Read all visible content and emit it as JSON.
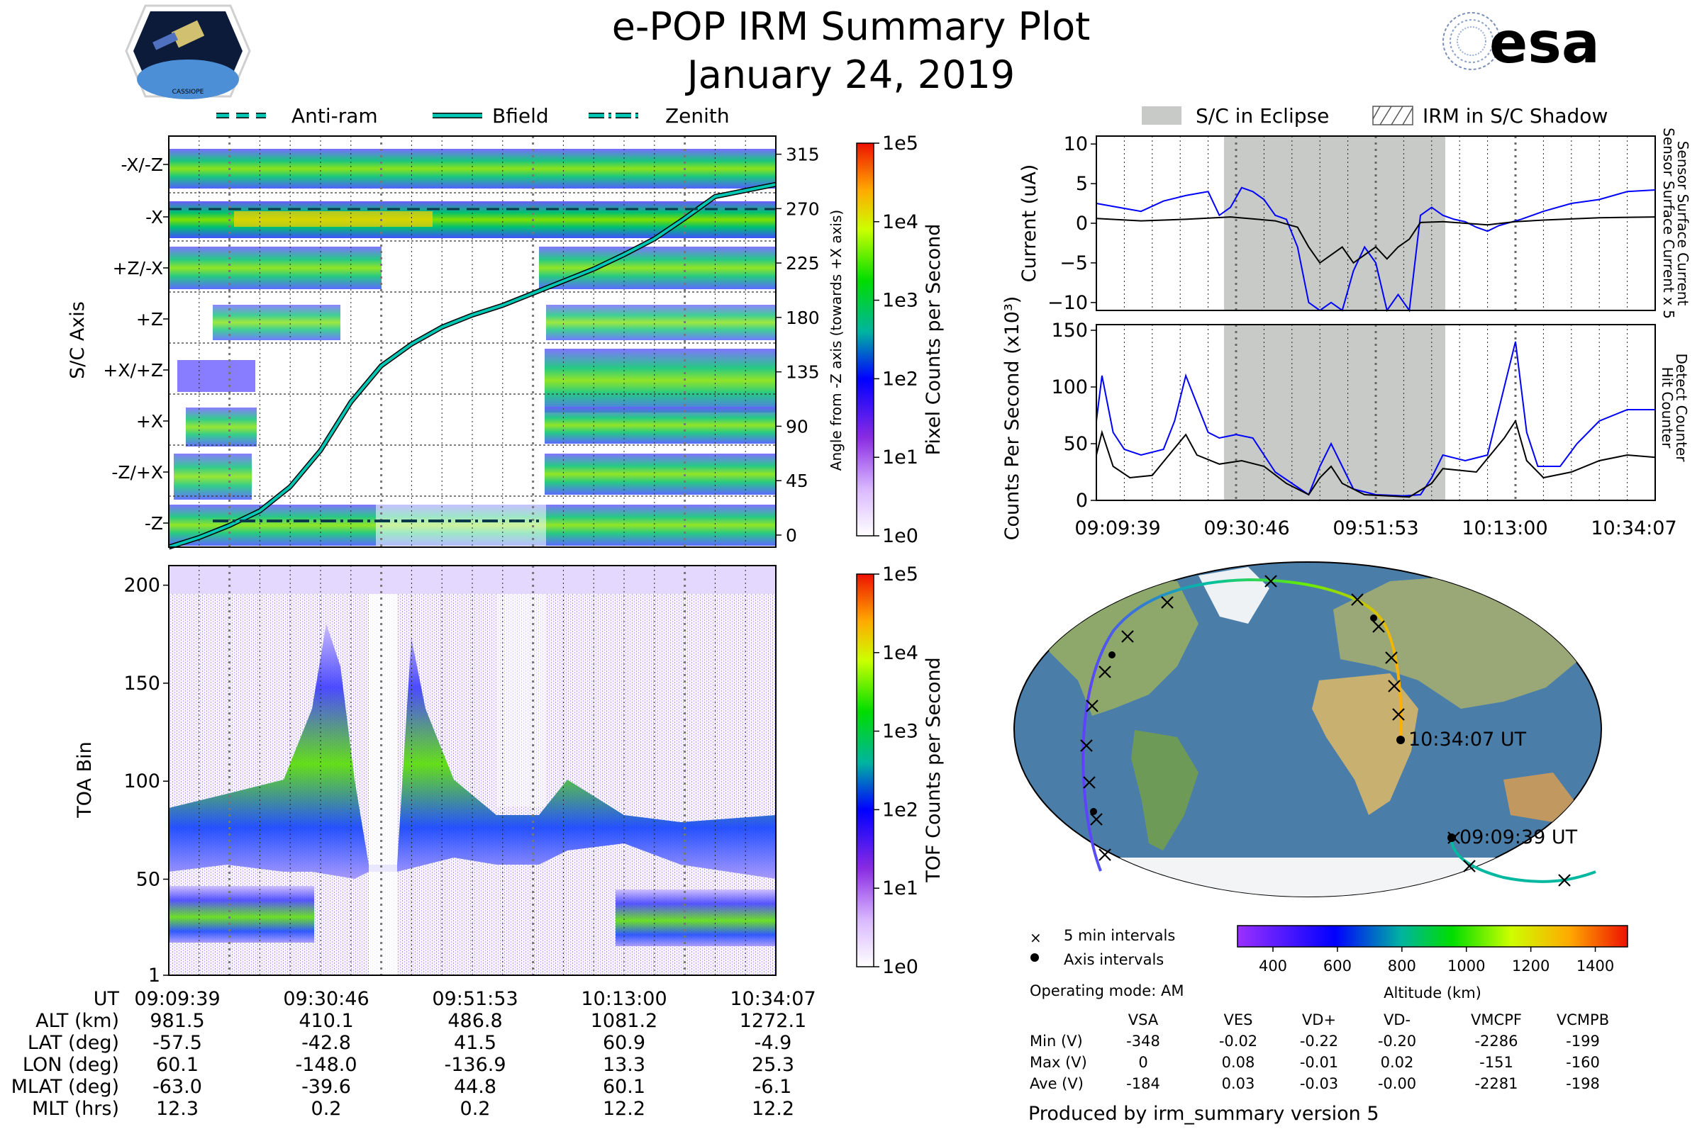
{
  "header": {
    "title": "e-POP IRM Summary Plot",
    "date": "January 24, 2019",
    "left_logo_caption": "CASSIOPE",
    "right_logo_text": "esa"
  },
  "colors": {
    "cyan_line": "#00c8b4",
    "blue_line": "#0000ff",
    "eclipse_gray": "#c8cac8",
    "orange_panel": "#ff9900"
  },
  "chart_data": [
    {
      "id": "sc_axis_spectrogram",
      "type": "heatmap",
      "title": "",
      "ylabel": "S/C Axis",
      "y2label": "Angle from -Z axis (towards +X axis)",
      "axis_rows": [
        "-X/-Z",
        "-X",
        "+Z/-X",
        "+Z",
        "+X/+Z",
        "+X",
        "-Z/+X",
        "-Z"
      ],
      "y2_ticks": [
        315,
        270,
        225,
        180,
        135,
        90,
        45,
        0
      ],
      "ylim_angle": [
        -10,
        330
      ],
      "legend": [
        {
          "name": "Anti-ram",
          "style": "dashed"
        },
        {
          "name": "Bfield",
          "style": "solid"
        },
        {
          "name": "Zenith",
          "style": "dashdot"
        }
      ],
      "bfield_angle_deg": [
        [
          0,
          -10
        ],
        [
          5,
          -2
        ],
        [
          10,
          8
        ],
        [
          15,
          20
        ],
        [
          20,
          40
        ],
        [
          25,
          70
        ],
        [
          30,
          110
        ],
        [
          35,
          140
        ],
        [
          40,
          158
        ],
        [
          45,
          172
        ],
        [
          50,
          182
        ],
        [
          55,
          190
        ],
        [
          60,
          200
        ],
        [
          65,
          210
        ],
        [
          70,
          220
        ],
        [
          75,
          232
        ],
        [
          80,
          245
        ],
        [
          85,
          262
        ],
        [
          90,
          280
        ],
        [
          100,
          290
        ]
      ],
      "colorbar": {
        "label": "Pixel Counts per Second",
        "ticks": [
          "1e0",
          "1e1",
          "1e2",
          "1e3",
          "1e4",
          "1e5"
        ]
      }
    },
    {
      "id": "toa_spectrogram",
      "type": "heatmap",
      "ylabel": "TOA Bin",
      "yticks": [
        "1",
        "50",
        "100",
        "150",
        "200"
      ],
      "ylim": [
        1,
        210
      ],
      "colorbar": {
        "label": "TOF Counts per Second",
        "ticks": [
          "1e0",
          "1e1",
          "1e2",
          "1e3",
          "1e4",
          "1e5"
        ]
      }
    },
    {
      "id": "current_panel",
      "type": "line",
      "ylabel": "Current (uA)",
      "yticks": [
        "10",
        "5",
        "0",
        "−5",
        "−10"
      ],
      "ylim": [
        -11,
        11
      ],
      "legend": [
        {
          "name": "S/C in Eclipse",
          "style": "gray-fill"
        },
        {
          "name": "IRM in S/C Shadow",
          "style": "hatch"
        }
      ],
      "right_labels": [
        "Sensor Surface Current x 5",
        "Sensor Surface Current"
      ],
      "series": [
        {
          "name": "Sensor Surface Current x 5",
          "color": "#0000ff",
          "values": [
            [
              0,
              2.5
            ],
            [
              4,
              2
            ],
            [
              8,
              1.5
            ],
            [
              12,
              2.8
            ],
            [
              16,
              3.5
            ],
            [
              20,
              4
            ],
            [
              22,
              1
            ],
            [
              24,
              2
            ],
            [
              26,
              4.5
            ],
            [
              28,
              4
            ],
            [
              30,
              3
            ],
            [
              32,
              1
            ],
            [
              34,
              0.5
            ],
            [
              36,
              -3
            ],
            [
              38,
              -10
            ],
            [
              40,
              -11
            ],
            [
              42,
              -10
            ],
            [
              44,
              -11
            ],
            [
              46,
              -6
            ],
            [
              48,
              -3
            ],
            [
              50,
              -5
            ],
            [
              52,
              -11
            ],
            [
              54,
              -9
            ],
            [
              56,
              -11
            ],
            [
              58,
              1
            ],
            [
              60,
              2
            ],
            [
              62,
              1
            ],
            [
              64,
              0.5
            ],
            [
              66,
              0.2
            ],
            [
              68,
              -0.5
            ],
            [
              70,
              -1
            ],
            [
              72,
              -0.3
            ],
            [
              76,
              0.5
            ],
            [
              80,
              1.5
            ],
            [
              85,
              2.5
            ],
            [
              90,
              3
            ],
            [
              95,
              4
            ],
            [
              100,
              4.2
            ]
          ]
        },
        {
          "name": "Sensor Surface Current",
          "color": "#000000",
          "values": [
            [
              0,
              0.6
            ],
            [
              8,
              0.3
            ],
            [
              16,
              0.5
            ],
            [
              24,
              0.8
            ],
            [
              32,
              0.3
            ],
            [
              36,
              -0.5
            ],
            [
              38,
              -3
            ],
            [
              40,
              -5
            ],
            [
              42,
              -4
            ],
            [
              44,
              -3
            ],
            [
              46,
              -5
            ],
            [
              48,
              -4
            ],
            [
              50,
              -3
            ],
            [
              52,
              -4.5
            ],
            [
              54,
              -3
            ],
            [
              56,
              -2
            ],
            [
              58,
              0.1
            ],
            [
              62,
              0.2
            ],
            [
              66,
              0
            ],
            [
              70,
              -0.2
            ],
            [
              75,
              0.2
            ],
            [
              80,
              0.4
            ],
            [
              90,
              0.7
            ],
            [
              100,
              0.8
            ]
          ]
        }
      ]
    },
    {
      "id": "counts_panel",
      "type": "line",
      "ylabel": "Counts Per Second (x10³)",
      "yticks": [
        "150",
        "100",
        "50",
        "0"
      ],
      "ylim": [
        0,
        155
      ],
      "xticks": [
        "09:09:39",
        "09:30:46",
        "09:51:53",
        "10:13:00",
        "10:34:07"
      ],
      "right_labels": [
        "Detect Counter",
        "Hit Counter"
      ],
      "series": [
        {
          "name": "Detect Counter",
          "color": "#0000ff",
          "values": [
            [
              0,
              70
            ],
            [
              1,
              110
            ],
            [
              3,
              60
            ],
            [
              5,
              45
            ],
            [
              8,
              40
            ],
            [
              12,
              45
            ],
            [
              14,
              70
            ],
            [
              16,
              110
            ],
            [
              18,
              85
            ],
            [
              20,
              60
            ],
            [
              22,
              55
            ],
            [
              25,
              58
            ],
            [
              28,
              55
            ],
            [
              30,
              40
            ],
            [
              32,
              25
            ],
            [
              35,
              15
            ],
            [
              38,
              5
            ],
            [
              40,
              30
            ],
            [
              42,
              50
            ],
            [
              44,
              30
            ],
            [
              46,
              10
            ],
            [
              50,
              5
            ],
            [
              55,
              4
            ],
            [
              58,
              5
            ],
            [
              60,
              20
            ],
            [
              62,
              40
            ],
            [
              66,
              35
            ],
            [
              70,
              40
            ],
            [
              73,
              100
            ],
            [
              75,
              140
            ],
            [
              77,
              60
            ],
            [
              79,
              30
            ],
            [
              83,
              30
            ],
            [
              86,
              50
            ],
            [
              90,
              70
            ],
            [
              95,
              80
            ],
            [
              100,
              80
            ]
          ]
        },
        {
          "name": "Hit Counter",
          "color": "#000000",
          "values": [
            [
              0,
              40
            ],
            [
              1,
              60
            ],
            [
              3,
              30
            ],
            [
              6,
              20
            ],
            [
              10,
              22
            ],
            [
              13,
              40
            ],
            [
              16,
              58
            ],
            [
              18,
              40
            ],
            [
              22,
              32
            ],
            [
              26,
              35
            ],
            [
              30,
              30
            ],
            [
              34,
              15
            ],
            [
              38,
              5
            ],
            [
              40,
              20
            ],
            [
              42,
              30
            ],
            [
              44,
              15
            ],
            [
              48,
              5
            ],
            [
              56,
              3
            ],
            [
              60,
              15
            ],
            [
              62,
              28
            ],
            [
              68,
              25
            ],
            [
              73,
              55
            ],
            [
              75,
              70
            ],
            [
              77,
              35
            ],
            [
              80,
              20
            ],
            [
              85,
              25
            ],
            [
              90,
              35
            ],
            [
              95,
              40
            ],
            [
              100,
              38
            ]
          ]
        }
      ]
    }
  ],
  "time_axis": {
    "labels": [
      "09:09:39",
      "09:30:46",
      "09:51:53",
      "10:13:00",
      "10:34:07"
    ]
  },
  "ephemeris": {
    "row_labels": [
      "UT",
      "ALT (km)",
      "LAT (deg)",
      "LON (deg)",
      "MLAT (deg)",
      "MLT (hrs)"
    ],
    "columns": [
      [
        "09:09:39",
        "981.5",
        "-57.5",
        "60.1",
        "-63.0",
        "12.3"
      ],
      [
        "09:30:46",
        "410.1",
        "-42.8",
        "-148.0",
        "-39.6",
        "0.2"
      ],
      [
        "09:51:53",
        "486.8",
        "41.5",
        "-136.9",
        "44.8",
        "0.2"
      ],
      [
        "10:13:00",
        "1081.2",
        "60.9",
        "13.3",
        "60.1",
        "12.2"
      ],
      [
        "10:34:07",
        "1272.1",
        "-4.9",
        "25.3",
        "-6.1",
        "12.2"
      ]
    ]
  },
  "map": {
    "start_label": "09:09:39 UT",
    "end_label": "10:34:07 UT",
    "legend_5min": "5 min intervals",
    "legend_axis": "Axis intervals",
    "altitude_colorbar": {
      "label": "Altitude (km)",
      "ticks": [
        "400",
        "600",
        "800",
        "1000",
        "1200",
        "1400"
      ]
    }
  },
  "operating_mode": "Operating mode: AM",
  "voltages": {
    "headers": [
      "VSA",
      "VES",
      "VD+",
      "VD-",
      "VMCPF",
      "VCMPB"
    ],
    "rows": [
      {
        "label": "Min (V)",
        "values": [
          "-348",
          "-0.02",
          "-0.22",
          "-0.20",
          "-2286",
          "-199"
        ]
      },
      {
        "label": "Max (V)",
        "values": [
          "0",
          "0.08",
          "-0.01",
          "0.02",
          "-151",
          "-160"
        ]
      },
      {
        "label": "Ave (V)",
        "values": [
          "-184",
          "0.03",
          "-0.03",
          "-0.00",
          "-2281",
          "-198"
        ]
      }
    ]
  },
  "footer": "Produced by irm_summary version 5"
}
